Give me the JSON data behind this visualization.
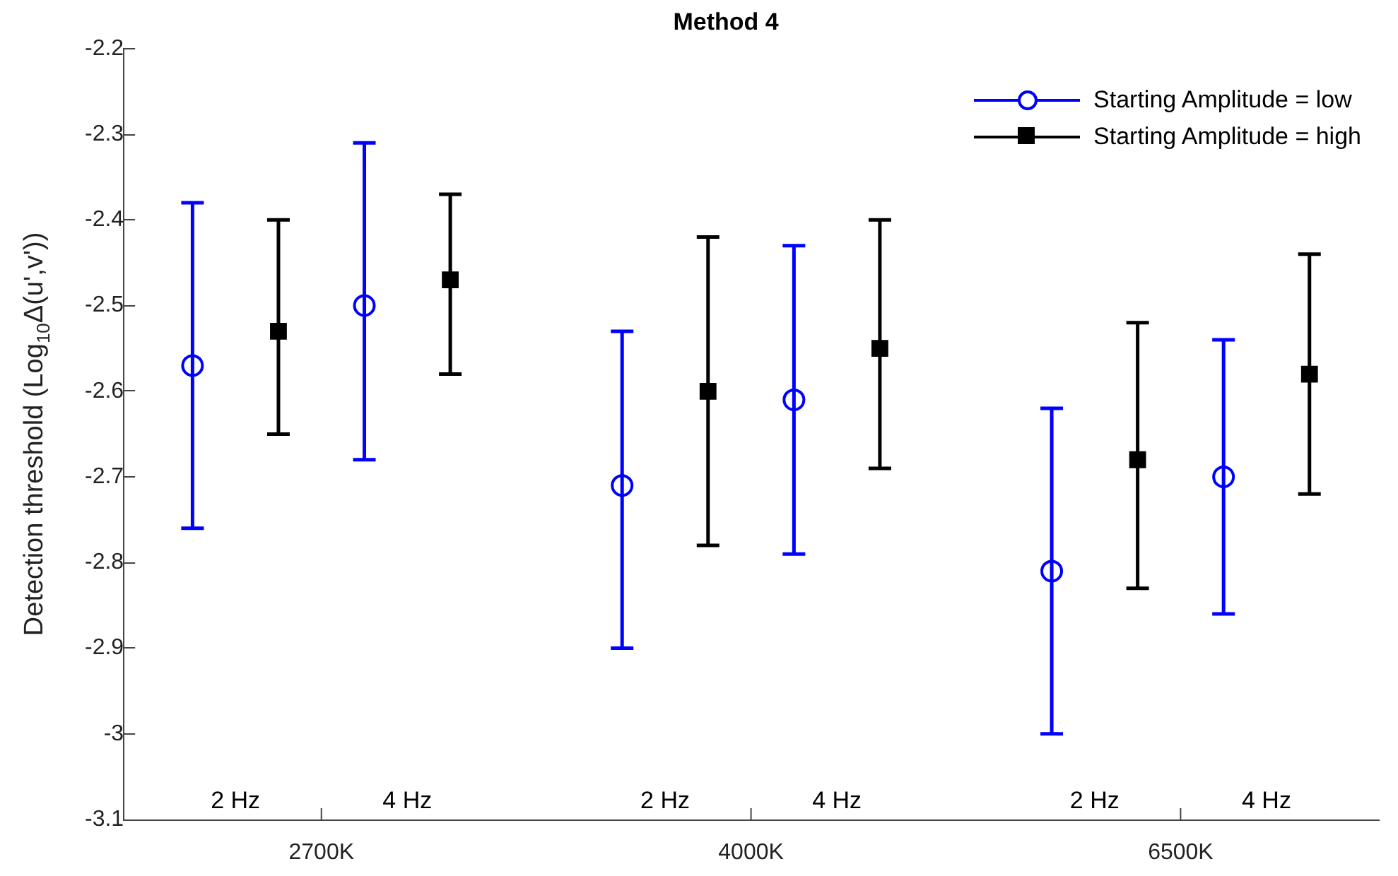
{
  "chart_data": {
    "type": "scatter",
    "title": "Method 4",
    "ylabel": "Detection threshold (Log$_{10}$Δ(u',v'))",
    "categories": [
      "2 Hz",
      "4 Hz",
      "2 Hz",
      "4 Hz",
      "2 Hz",
      "4 Hz"
    ],
    "ylim": [
      -3.1,
      -2.2
    ],
    "yticks": [
      -3.1,
      -3,
      -2.9,
      -2.8,
      -2.7,
      -2.6,
      -2.5,
      -2.4,
      -2.3,
      -2.2
    ],
    "grid": false,
    "legend": "top right",
    "series": [
      {
        "name": "Starting Amplitude = low",
        "color": "#0000ff",
        "marker": "circle",
        "values": [
          -2.57,
          -2.5,
          -2.71,
          -2.61,
          -2.81,
          -2.7
        ],
        "errors": [
          [
            -2.76,
            -2.38
          ],
          [
            -2.68,
            -2.31
          ],
          [
            -2.9,
            -2.53
          ],
          [
            -2.79,
            -2.43
          ],
          [
            -3.0,
            -2.62
          ],
          [
            -2.86,
            -2.54
          ]
        ]
      },
      {
        "name": "Starting Amplitude = high",
        "color": "#000000",
        "marker": "square",
        "values": [
          -2.53,
          -2.47,
          -2.6,
          -2.55,
          -2.68,
          -2.58
        ],
        "errors": [
          [
            -2.65,
            -2.4
          ],
          [
            -2.58,
            -2.37
          ],
          [
            -2.78,
            -2.42
          ],
          [
            -2.69,
            -2.4
          ],
          [
            -2.83,
            -2.52
          ],
          [
            -2.72,
            -2.44
          ]
        ]
      }
    ],
    "annotations": [
      "2700K",
      "4000K",
      "6500K"
    ]
  }
}
